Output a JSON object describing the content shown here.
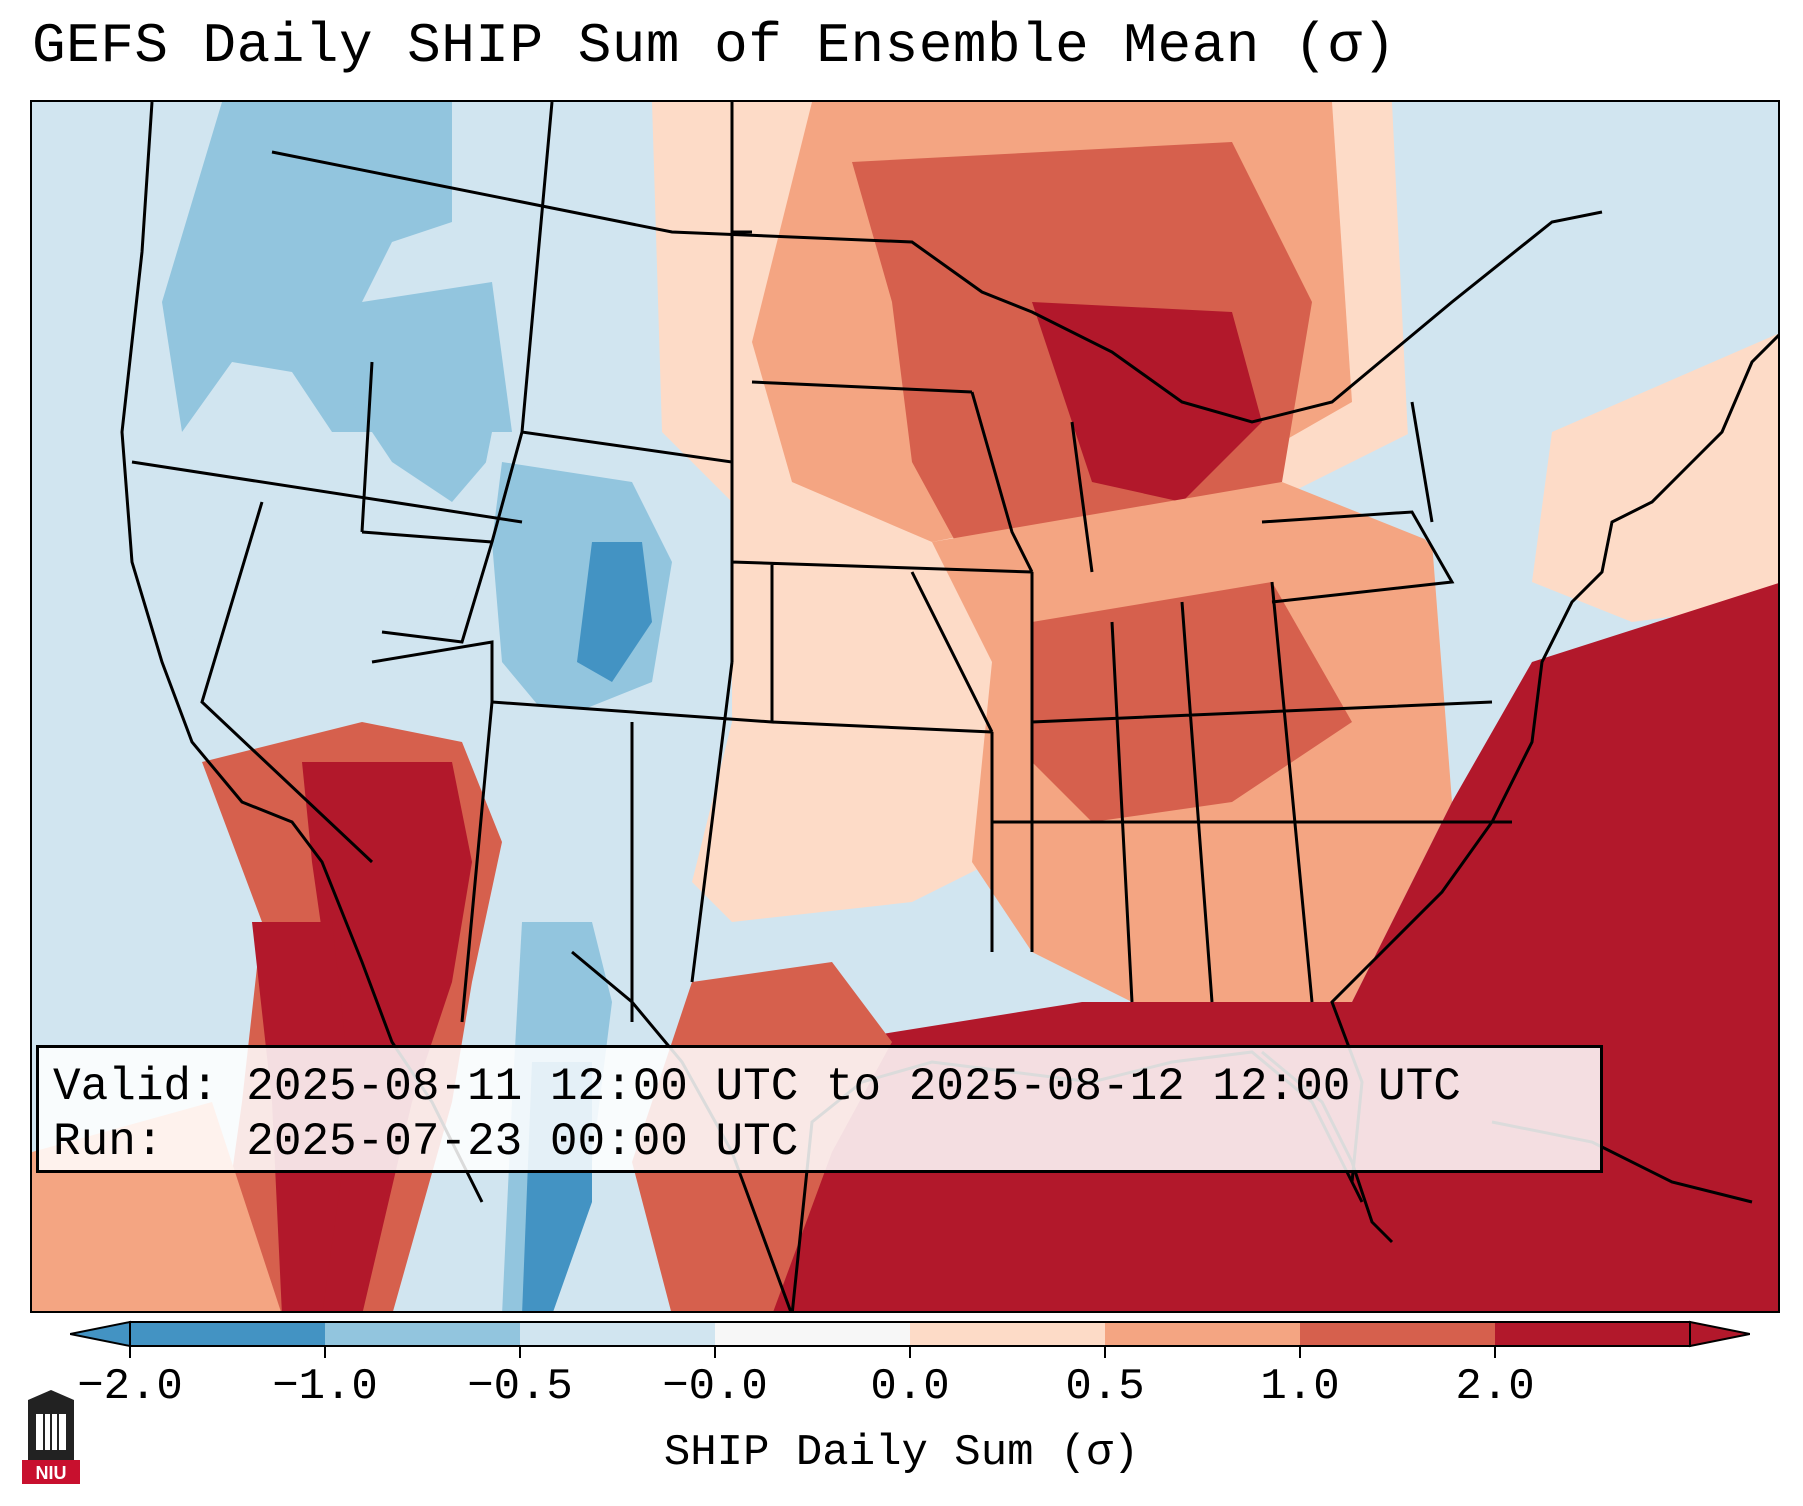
{
  "title": "GEFS Daily SHIP Sum of Ensemble Mean (σ)",
  "info": {
    "valid_line": "Valid: 2025-08-11 12:00 UTC to 2025-08-12 12:00 UTC",
    "run_line": "Run:   2025-07-23 00:00 UTC"
  },
  "colorbar": {
    "label": "SHIP Daily Sum (σ)",
    "ticks": [
      "−2.0",
      "−1.0",
      "−0.5",
      "−0.0",
      "0.0",
      "0.5",
      "1.0",
      "2.0"
    ],
    "colors": [
      "#4393c3",
      "#92c5de",
      "#d1e5f0",
      "#f7f7f7",
      "#fddbc7",
      "#f4a582",
      "#d6604d",
      "#b2182b"
    ],
    "extend": "both"
  },
  "map": {
    "region": "Contiguous United States",
    "anomaly_colors": {
      "strong_negative": "#4393c3",
      "negative": "#92c5de",
      "weak_negative": "#d1e5f0",
      "weak_positive": "#fddbc7",
      "positive": "#f4a582",
      "strong_positive": "#d6604d",
      "very_strong_positive": "#b2182b"
    }
  },
  "logo": {
    "text": "NIU"
  }
}
